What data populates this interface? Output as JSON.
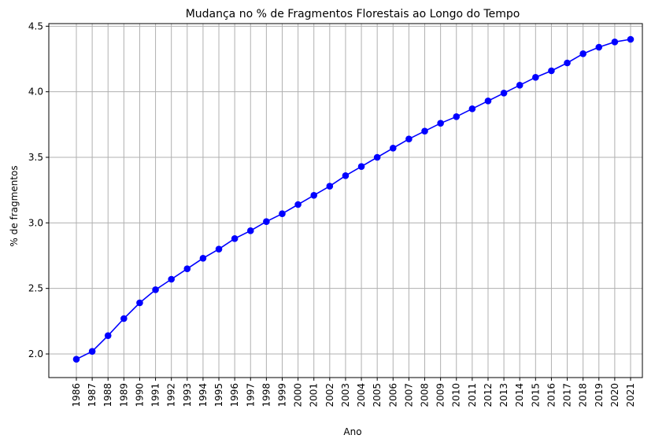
{
  "chart_data": {
    "type": "line",
    "title": "Mudança no % de Fragmentos Florestais ao Longo do Tempo",
    "xlabel": "Ano",
    "ylabel": "% de fragmentos",
    "ylim": [
      1.82,
      4.52
    ],
    "yticks": [
      "2.0",
      "2.5",
      "3.0",
      "3.5",
      "4.0",
      "4.5"
    ],
    "grid": true,
    "line_color": "#0000ff",
    "x": [
      "1986",
      "1987",
      "1988",
      "1989",
      "1990",
      "1991",
      "1992",
      "1993",
      "1994",
      "1995",
      "1996",
      "1997",
      "1998",
      "1999",
      "2000",
      "2001",
      "2002",
      "2003",
      "2004",
      "2005",
      "2006",
      "2007",
      "2008",
      "2009",
      "2010",
      "2011",
      "2012",
      "2013",
      "2014",
      "2015",
      "2016",
      "2017",
      "2018",
      "2019",
      "2020",
      "2021"
    ],
    "series": [
      {
        "values": [
          1.96,
          2.02,
          2.14,
          2.27,
          2.39,
          2.49,
          2.57,
          2.65,
          2.73,
          2.8,
          2.88,
          2.94,
          3.01,
          3.07,
          3.14,
          3.21,
          3.28,
          3.36,
          3.43,
          3.5,
          3.57,
          3.64,
          3.7,
          3.76,
          3.81,
          3.87,
          3.93,
          3.99,
          4.05,
          4.11,
          4.16,
          4.22,
          4.29,
          4.34,
          4.38,
          4.4
        ]
      }
    ]
  }
}
